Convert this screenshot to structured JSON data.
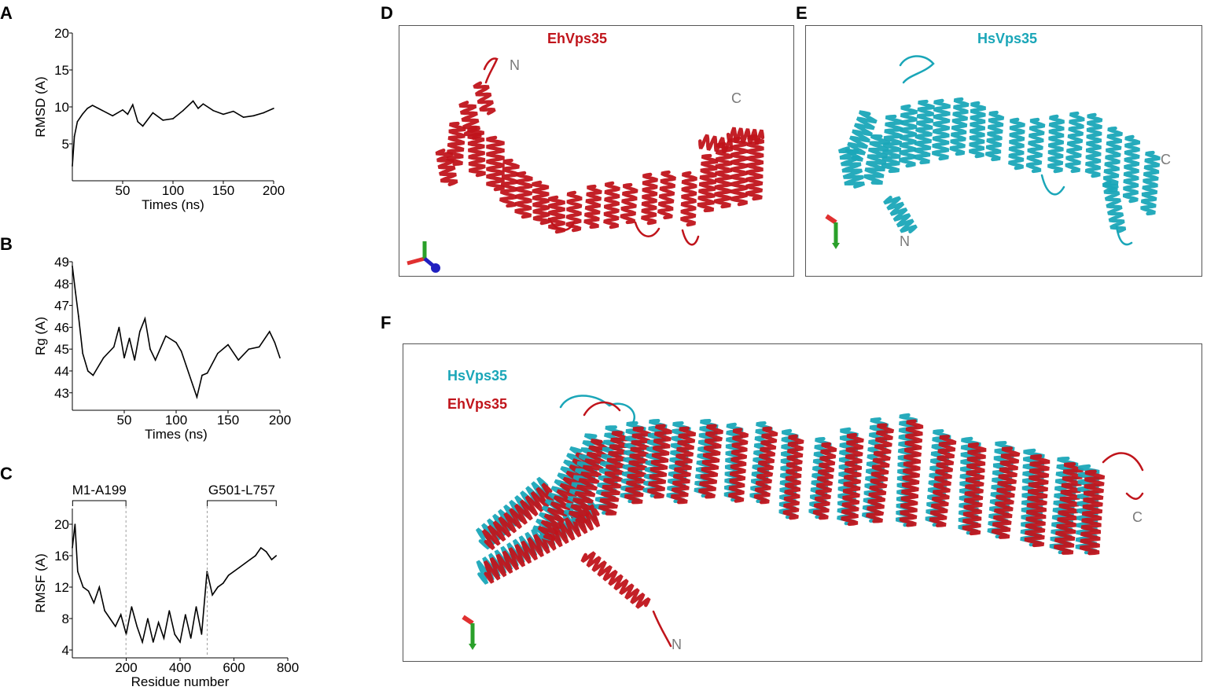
{
  "panels": {
    "a": "A",
    "b": "B",
    "c": "C",
    "d": "D",
    "e": "E",
    "f": "F"
  },
  "structures": {
    "d": {
      "title": "EhVps35",
      "n_label": "N",
      "c_label": "C"
    },
    "e": {
      "title": "HsVps35",
      "n_label": "N",
      "c_label": "C"
    },
    "f": {
      "legend": [
        "HsVps35",
        "EhVps35"
      ],
      "n_label": "N",
      "c_label": "C"
    }
  },
  "colors": {
    "ehvps35": "#c0141b",
    "hsvps35": "#1aa6b8",
    "curve": "#000000",
    "terminus": "#7a7a7a"
  },
  "chart_data": [
    {
      "type": "line",
      "xlabel": "Times (ns)",
      "ylabel": "RMSD (A)",
      "xticks": [
        50,
        100,
        150,
        200
      ],
      "yticks": [
        5,
        10,
        15,
        20
      ],
      "xlim": [
        0,
        200
      ],
      "ylim": [
        0,
        20
      ],
      "x": [
        0,
        2,
        5,
        10,
        15,
        20,
        30,
        40,
        50,
        55,
        60,
        65,
        70,
        80,
        90,
        100,
        110,
        120,
        125,
        130,
        140,
        150,
        160,
        170,
        180,
        190,
        200
      ],
      "y": [
        2,
        6,
        8,
        9,
        9.8,
        10.2,
        9.5,
        8.8,
        9.6,
        9.0,
        10.3,
        8.0,
        7.4,
        9.2,
        8.2,
        8.4,
        9.5,
        10.8,
        9.8,
        10.4,
        9.5,
        9.0,
        9.4,
        8.6,
        8.8,
        9.2,
        9.8
      ]
    },
    {
      "type": "line",
      "xlabel": "Times (ns)",
      "ylabel": "Rg (A)",
      "xticks": [
        50,
        100,
        150,
        200
      ],
      "yticks": [
        43,
        44,
        45,
        46,
        47,
        48,
        49
      ],
      "xlim": [
        0,
        200
      ],
      "ylim": [
        42.2,
        49
      ],
      "x": [
        0,
        3,
        6,
        10,
        15,
        20,
        30,
        40,
        45,
        50,
        55,
        60,
        65,
        70,
        75,
        80,
        90,
        100,
        105,
        110,
        115,
        120,
        125,
        130,
        140,
        150,
        160,
        170,
        180,
        190,
        195,
        200
      ],
      "y": [
        48.8,
        47.6,
        46.5,
        44.8,
        44.0,
        43.8,
        44.6,
        45.1,
        46.0,
        44.6,
        45.5,
        44.5,
        45.8,
        46.4,
        45.0,
        44.5,
        45.6,
        45.3,
        44.9,
        44.2,
        43.5,
        42.8,
        43.8,
        43.9,
        44.8,
        45.2,
        44.5,
        45.0,
        45.1,
        45.8,
        45.3,
        44.6
      ]
    },
    {
      "type": "line",
      "xlabel": "Residue number",
      "ylabel": "RMSF (A)",
      "xticks": [
        200,
        400,
        600,
        800
      ],
      "yticks": [
        4,
        8,
        12,
        16,
        20
      ],
      "xlim": [
        0,
        800
      ],
      "ylim": [
        3,
        22
      ],
      "x": [
        0,
        10,
        20,
        40,
        60,
        80,
        100,
        120,
        140,
        160,
        180,
        200,
        220,
        240,
        260,
        280,
        300,
        320,
        340,
        360,
        380,
        400,
        420,
        440,
        460,
        480,
        500,
        520,
        540,
        560,
        580,
        600,
        620,
        640,
        660,
        680,
        700,
        720,
        740,
        757
      ],
      "y": [
        17,
        20,
        14,
        12,
        11.5,
        10,
        12,
        9,
        8,
        7,
        8.5,
        6,
        9.5,
        7,
        5,
        8,
        5,
        7.5,
        5.5,
        9,
        6,
        5,
        8.5,
        5.5,
        9.5,
        6,
        14,
        11,
        12,
        12.5,
        13.5,
        14,
        14.5,
        15,
        15.5,
        16,
        17,
        16.5,
        15.5,
        16
      ],
      "annotations": [
        {
          "label": "M1-A199",
          "x_start": 1,
          "x_end": 199
        },
        {
          "label": "G501-L757",
          "x_start": 501,
          "x_end": 757
        }
      ]
    }
  ]
}
